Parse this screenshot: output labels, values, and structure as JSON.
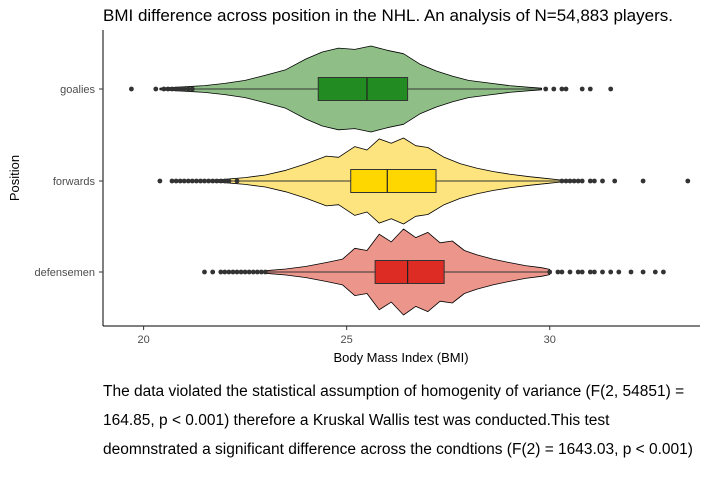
{
  "chart_data": {
    "type": "violin",
    "title": "BMI difference across position in the NHL. An analysis of N=54,883 players.",
    "xlabel": "Body Mass Index (BMI)",
    "ylabel": "Position",
    "xlim": [
      19.0,
      33.7
    ],
    "x_ticks": [
      20,
      25,
      30
    ],
    "grid": false,
    "categories": [
      "goalies",
      "forwards",
      "defensemen"
    ],
    "series": [
      {
        "name": "goalies",
        "fill": "#8fbf87",
        "box_fill": "#228b22",
        "median": 25.5,
        "q1": 24.3,
        "q3": 26.5,
        "whisker_low": 20.4,
        "whisker_high": 29.8,
        "outliers_low": [
          19.7,
          20.3,
          20.5,
          20.6,
          20.7,
          20.8,
          20.9,
          21.0,
          21.1,
          21.2
        ],
        "outliers_high": [
          29.9,
          30.1,
          30.3,
          30.4,
          30.8,
          31.0,
          31.5
        ],
        "density": [
          [
            20.4,
            0.02
          ],
          [
            21.0,
            0.05
          ],
          [
            21.5,
            0.08
          ],
          [
            22.0,
            0.13
          ],
          [
            22.5,
            0.2
          ],
          [
            23.0,
            0.32
          ],
          [
            23.5,
            0.45
          ],
          [
            24.0,
            0.7
          ],
          [
            24.4,
            0.86
          ],
          [
            24.8,
            0.95
          ],
          [
            25.2,
            0.92
          ],
          [
            25.6,
            1.0
          ],
          [
            26.0,
            0.9
          ],
          [
            26.4,
            0.82
          ],
          [
            26.8,
            0.58
          ],
          [
            27.2,
            0.42
          ],
          [
            27.6,
            0.3
          ],
          [
            28.0,
            0.2
          ],
          [
            28.5,
            0.14
          ],
          [
            29.0,
            0.08
          ],
          [
            29.5,
            0.04
          ],
          [
            29.8,
            0.02
          ]
        ]
      },
      {
        "name": "forwards",
        "fill": "#fde47f",
        "box_fill": "#ffd700",
        "median": 26.0,
        "q1": 25.1,
        "q3": 27.2,
        "whisker_low": 21.6,
        "whisker_high": 30.3,
        "outliers_low": [
          20.4,
          20.7,
          20.8,
          20.9,
          21.0,
          21.1,
          21.2,
          21.3,
          21.4,
          21.5,
          21.6,
          21.7,
          21.8,
          21.9,
          22.0,
          22.1,
          22.3
        ],
        "outliers_high": [
          30.3,
          30.4,
          30.5,
          30.6,
          30.7,
          30.8,
          31.0,
          31.1,
          31.3,
          31.6,
          32.3,
          33.4
        ],
        "density": [
          [
            21.6,
            0.02
          ],
          [
            22.0,
            0.04
          ],
          [
            22.5,
            0.08
          ],
          [
            23.0,
            0.14
          ],
          [
            23.5,
            0.25
          ],
          [
            24.0,
            0.4
          ],
          [
            24.5,
            0.58
          ],
          [
            24.8,
            0.55
          ],
          [
            25.2,
            0.8
          ],
          [
            25.5,
            0.72
          ],
          [
            25.8,
            0.98
          ],
          [
            26.1,
            0.88
          ],
          [
            26.4,
            1.0
          ],
          [
            26.7,
            0.82
          ],
          [
            27.0,
            0.78
          ],
          [
            27.4,
            0.55
          ],
          [
            27.8,
            0.4
          ],
          [
            28.2,
            0.3
          ],
          [
            28.6,
            0.22
          ],
          [
            29.0,
            0.16
          ],
          [
            29.5,
            0.1
          ],
          [
            30.0,
            0.05
          ],
          [
            30.3,
            0.02
          ]
        ]
      },
      {
        "name": "defensemen",
        "fill": "#ec958b",
        "box_fill": "#dc2c24",
        "median": 26.5,
        "q1": 25.7,
        "q3": 27.4,
        "whisker_low": 23.0,
        "whisker_high": 30.0,
        "outliers_low": [
          21.5,
          21.7,
          21.9,
          22.0,
          22.1,
          22.2,
          22.3,
          22.4,
          22.5,
          22.6,
          22.7,
          22.8,
          22.9,
          23.0
        ],
        "outliers_high": [
          30.0,
          30.2,
          30.3,
          30.5,
          30.7,
          30.8,
          31.0,
          31.1,
          31.3,
          31.5,
          31.7,
          32.0,
          32.3,
          32.6,
          32.8
        ],
        "density": [
          [
            23.0,
            0.03
          ],
          [
            23.5,
            0.07
          ],
          [
            24.0,
            0.13
          ],
          [
            24.5,
            0.22
          ],
          [
            24.9,
            0.3
          ],
          [
            25.2,
            0.55
          ],
          [
            25.5,
            0.5
          ],
          [
            25.8,
            0.88
          ],
          [
            26.1,
            0.7
          ],
          [
            26.4,
            1.0
          ],
          [
            26.7,
            0.8
          ],
          [
            27.0,
            0.92
          ],
          [
            27.3,
            0.68
          ],
          [
            27.6,
            0.72
          ],
          [
            27.9,
            0.5
          ],
          [
            28.2,
            0.4
          ],
          [
            28.6,
            0.3
          ],
          [
            29.0,
            0.22
          ],
          [
            29.4,
            0.15
          ],
          [
            29.8,
            0.1
          ],
          [
            30.0,
            0.06
          ]
        ]
      }
    ]
  },
  "caption": "The data violated the statistical assumption of homogenity of variance (F(2, 54851) = 164.85, p < 0.001) therefore a Kruskal Wallis test was conducted.This test deomnstrated a significant difference across the condtions (F(2) = 1643.03, p < 0.001)"
}
